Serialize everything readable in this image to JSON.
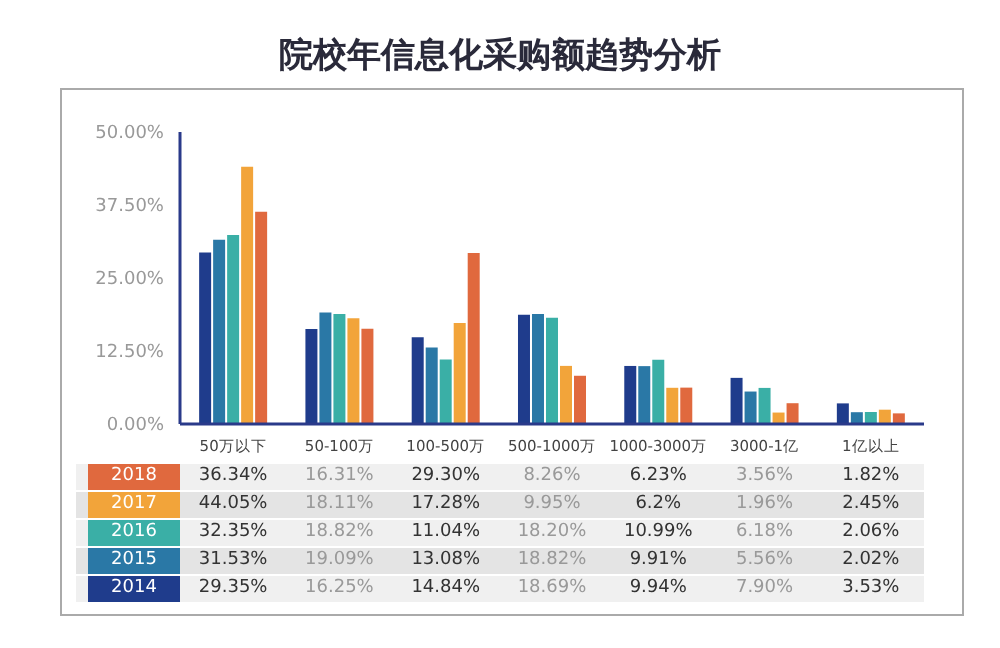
{
  "chart_data": {
    "type": "bar",
    "title": "院校年信息化采购额趋势分析",
    "categories": [
      "50万以下",
      "50-100万",
      "100-500万",
      "500-1000万",
      "1000-3000万",
      "3000-1亿",
      "1亿以上"
    ],
    "series": [
      {
        "name": "2014",
        "color": "#1f3c8c",
        "values": [
          29.35,
          16.25,
          14.84,
          18.69,
          9.94,
          7.9,
          3.53
        ],
        "value_labels": [
          "29.35%",
          "16.25%",
          "14.84%",
          "18.69%",
          "9.94%",
          "7.90%",
          "3.53%"
        ]
      },
      {
        "name": "2015",
        "color": "#2a78a6",
        "values": [
          31.53,
          19.09,
          13.08,
          18.82,
          9.91,
          5.56,
          2.02
        ],
        "value_labels": [
          "31.53%",
          "19.09%",
          "13.08%",
          "18.82%",
          "9.91%",
          "5.56%",
          "2.02%"
        ]
      },
      {
        "name": "2016",
        "color": "#3aafa6",
        "values": [
          32.35,
          18.82,
          11.04,
          18.2,
          10.99,
          6.18,
          2.06
        ],
        "value_labels": [
          "32.35%",
          "18.82%",
          "11.04%",
          "18.20%",
          "10.99%",
          "6.18%",
          "2.06%"
        ]
      },
      {
        "name": "2017",
        "color": "#f2a43a",
        "values": [
          44.05,
          18.11,
          17.28,
          9.95,
          6.2,
          1.96,
          2.45
        ],
        "value_labels": [
          "44.05%",
          "18.11%",
          "17.28%",
          "9.95%",
          "6.2%",
          "1.96%",
          "2.45%"
        ]
      },
      {
        "name": "2018",
        "color": "#e0693e",
        "values": [
          36.34,
          16.31,
          29.3,
          8.26,
          6.23,
          3.56,
          1.82
        ],
        "value_labels": [
          "36.34%",
          "16.31%",
          "29.30%",
          "8.26%",
          "6.23%",
          "3.56%",
          "1.82%"
        ]
      }
    ],
    "ylim": [
      0,
      50
    ],
    "yticks": [
      {
        "value": 0,
        "label": "0.00%"
      },
      {
        "value": 12.5,
        "label": "12.50%"
      },
      {
        "value": 25,
        "label": "25.00%"
      },
      {
        "value": 37.5,
        "label": "37.50%"
      },
      {
        "value": 50,
        "label": "50.00%"
      }
    ],
    "legend": "bottom left"
  }
}
